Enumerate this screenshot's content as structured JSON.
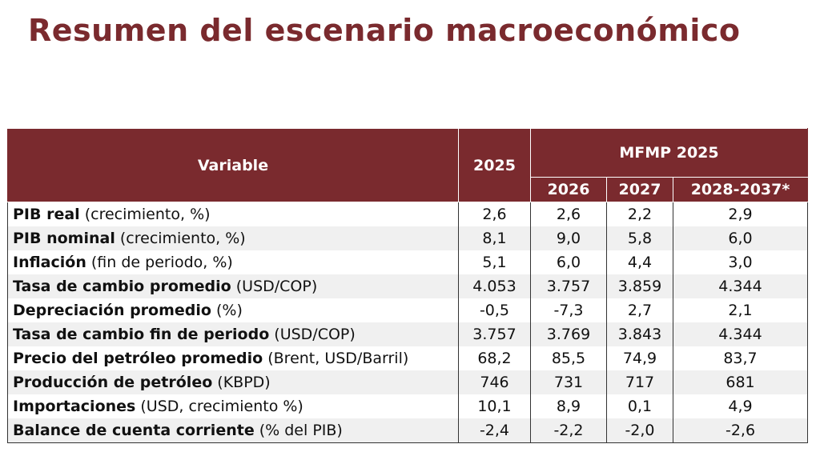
{
  "title": "Resumen del escenario macroeconómico",
  "table": {
    "header": {
      "variable": "Variable",
      "year_2025": "2025",
      "group": "MFMP 2025",
      "years": [
        "2026",
        "2027",
        "2028-2037*"
      ]
    },
    "rows": [
      {
        "name": "PIB real",
        "desc": " (crecimiento, %)",
        "values": [
          "2,6",
          "2,6",
          "2,2",
          "2,9"
        ]
      },
      {
        "name": "PIB nominal",
        "desc": " (crecimiento, %)",
        "values": [
          "8,1",
          "9,0",
          "5,8",
          "6,0"
        ]
      },
      {
        "name": "Inflación",
        "desc": " (fin de periodo, %)",
        "values": [
          "5,1",
          "6,0",
          "4,4",
          "3,0"
        ]
      },
      {
        "name": "Tasa de cambio promedio",
        "desc": " (USD/COP)",
        "values": [
          "4.053",
          "3.757",
          "3.859",
          "4.344"
        ]
      },
      {
        "name": "Depreciación promedio",
        "desc": " (%)",
        "values": [
          "-0,5",
          "-7,3",
          "2,7",
          "2,1"
        ]
      },
      {
        "name": "Tasa de cambio fin de periodo",
        "desc": " (USD/COP)",
        "values": [
          "3.757",
          "3.769",
          "3.843",
          "4.344"
        ]
      },
      {
        "name": "Precio del petróleo promedio",
        "desc": " (Brent, USD/Barril)",
        "values": [
          "68,2",
          "85,5",
          "74,9",
          "83,7"
        ]
      },
      {
        "name": "Producción de petróleo",
        "desc": " (KBPD)",
        "values": [
          "746",
          "731",
          "717",
          "681"
        ]
      },
      {
        "name": "Importaciones",
        "desc": " (USD, crecimiento %)",
        "values": [
          "10,1",
          "8,9",
          "0,1",
          "4,9"
        ]
      },
      {
        "name": "Balance de cuenta corriente",
        "desc": " (% del PIB)",
        "values": [
          "-2,4",
          "-2,2",
          "-2,0",
          "-2,6"
        ]
      }
    ]
  },
  "colors": {
    "header_bg": "#7a2a2e",
    "title": "#7a2a2e",
    "stripe": "#f0f0f0"
  }
}
